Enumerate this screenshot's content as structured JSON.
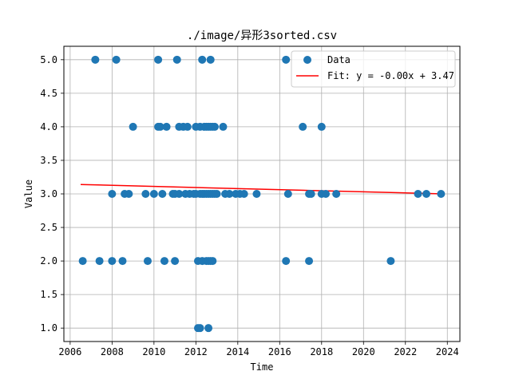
{
  "chart_data": {
    "type": "scatter",
    "title": "./image/异形3sorted.csv",
    "xlabel": "Time",
    "ylabel": "Value",
    "xlim": [
      2005.7,
      2024.6
    ],
    "ylim": [
      0.8,
      5.2
    ],
    "xticks": [
      2006,
      2008,
      2010,
      2012,
      2014,
      2016,
      2018,
      2020,
      2022,
      2024
    ],
    "yticks": [
      1.0,
      1.5,
      2.0,
      2.5,
      3.0,
      3.5,
      4.0,
      4.5,
      5.0
    ],
    "grid": true,
    "legend_position": "top-right",
    "colors": {
      "points": "#1f77b4",
      "fit": "#ff0000",
      "grid": "#b0b0b0"
    },
    "series": [
      {
        "name": "Data",
        "type": "scatter",
        "points": [
          [
            2007.2,
            5
          ],
          [
            2008.2,
            5
          ],
          [
            2010.2,
            5
          ],
          [
            2011.1,
            5
          ],
          [
            2012.3,
            5
          ],
          [
            2012.7,
            5
          ],
          [
            2016.3,
            5
          ],
          [
            2009.0,
            4
          ],
          [
            2010.2,
            4
          ],
          [
            2010.3,
            4
          ],
          [
            2010.6,
            4
          ],
          [
            2011.2,
            4
          ],
          [
            2011.4,
            4
          ],
          [
            2011.6,
            4
          ],
          [
            2012.0,
            4
          ],
          [
            2012.2,
            4
          ],
          [
            2012.4,
            4
          ],
          [
            2012.5,
            4
          ],
          [
            2012.6,
            4
          ],
          [
            2012.7,
            4
          ],
          [
            2012.8,
            4
          ],
          [
            2012.9,
            4
          ],
          [
            2013.3,
            4
          ],
          [
            2017.1,
            4
          ],
          [
            2018.0,
            4
          ],
          [
            2008.0,
            3
          ],
          [
            2008.6,
            3
          ],
          [
            2008.8,
            3
          ],
          [
            2009.6,
            3
          ],
          [
            2010.0,
            3
          ],
          [
            2010.4,
            3
          ],
          [
            2010.9,
            3
          ],
          [
            2011.0,
            3
          ],
          [
            2011.2,
            3
          ],
          [
            2011.5,
            3
          ],
          [
            2011.7,
            3
          ],
          [
            2011.9,
            3
          ],
          [
            2012.0,
            3
          ],
          [
            2012.2,
            3
          ],
          [
            2012.3,
            3
          ],
          [
            2012.4,
            3
          ],
          [
            2012.5,
            3
          ],
          [
            2012.6,
            3
          ],
          [
            2012.7,
            3
          ],
          [
            2012.8,
            3
          ],
          [
            2012.9,
            3
          ],
          [
            2013.0,
            3
          ],
          [
            2013.4,
            3
          ],
          [
            2013.6,
            3
          ],
          [
            2013.9,
            3
          ],
          [
            2014.1,
            3
          ],
          [
            2014.3,
            3
          ],
          [
            2014.9,
            3
          ],
          [
            2016.4,
            3
          ],
          [
            2017.4,
            3
          ],
          [
            2017.5,
            3
          ],
          [
            2018.0,
            3
          ],
          [
            2018.2,
            3
          ],
          [
            2018.7,
            3
          ],
          [
            2022.6,
            3
          ],
          [
            2023.0,
            3
          ],
          [
            2023.7,
            3
          ],
          [
            2006.6,
            2
          ],
          [
            2007.4,
            2
          ],
          [
            2008.0,
            2
          ],
          [
            2008.5,
            2
          ],
          [
            2009.7,
            2
          ],
          [
            2010.5,
            2
          ],
          [
            2011.0,
            2
          ],
          [
            2012.1,
            2
          ],
          [
            2012.3,
            2
          ],
          [
            2012.5,
            2
          ],
          [
            2012.6,
            2
          ],
          [
            2012.7,
            2
          ],
          [
            2012.8,
            2
          ],
          [
            2016.3,
            2
          ],
          [
            2017.4,
            2
          ],
          [
            2021.3,
            2
          ],
          [
            2012.1,
            1
          ],
          [
            2012.2,
            1
          ],
          [
            2012.6,
            1
          ]
        ]
      },
      {
        "name": "Fit: y = -0.00x + 3.47",
        "type": "line",
        "x": [
          2006.5,
          2023.8
        ],
        "y": [
          3.14,
          3.0
        ]
      }
    ]
  }
}
